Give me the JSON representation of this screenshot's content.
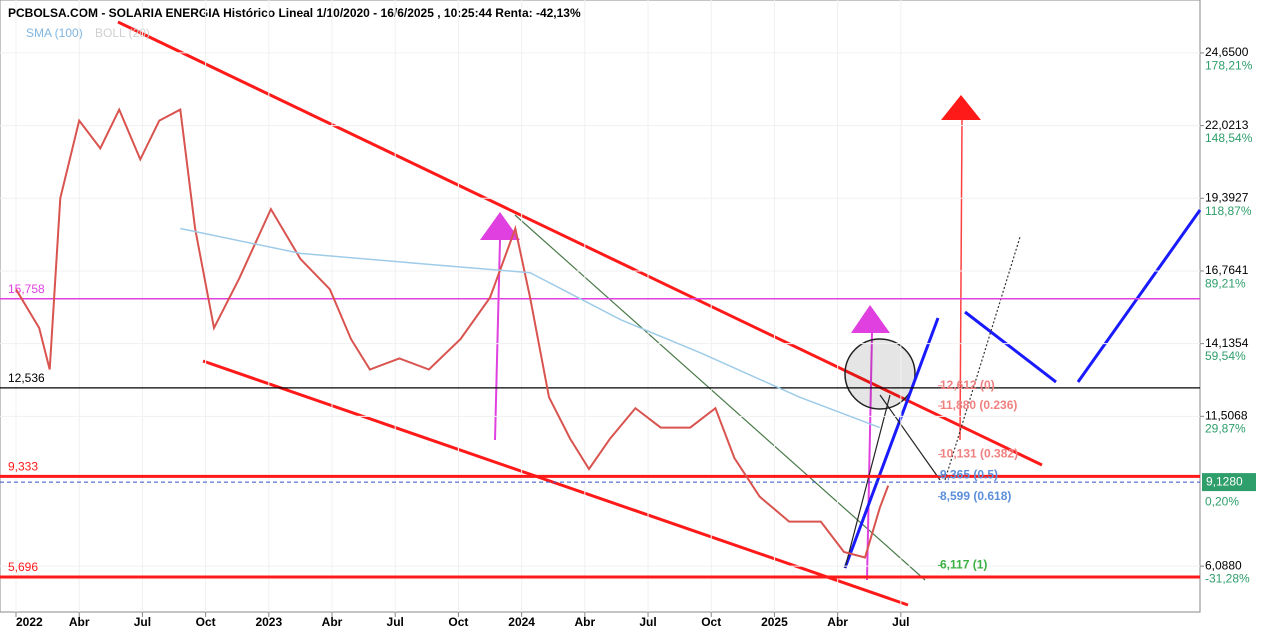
{
  "chart_data": {
    "type": "line",
    "title": "PCBOLSA.COM - SOLARIA ENERGIA Histórico Lineal 1/10/2020 - 16/6/2025 , 10:25:44 Renta: -42,13%",
    "legend": [
      "SMA (100)",
      "BOLL (20)"
    ],
    "xlim": [
      -0.76,
      56.2
    ],
    "xticks": [
      {
        "value": 0,
        "label": "2022"
      },
      {
        "value": 3,
        "label": "Abr"
      },
      {
        "value": 6,
        "label": "Jul"
      },
      {
        "value": 9,
        "label": "Oct"
      },
      {
        "value": 12,
        "label": "2023"
      },
      {
        "value": 15,
        "label": "Abr"
      },
      {
        "value": 18,
        "label": "Jul"
      },
      {
        "value": 21,
        "label": "Oct"
      },
      {
        "value": 24,
        "label": "2024"
      },
      {
        "value": 27,
        "label": "Abr"
      },
      {
        "value": 30,
        "label": "Jul"
      },
      {
        "value": 33,
        "label": "Oct"
      },
      {
        "value": 36,
        "label": "2025"
      },
      {
        "value": 39,
        "label": "Abr"
      },
      {
        "value": 42,
        "label": "Jul"
      }
    ],
    "ylim": [
      4.43,
      25.84
    ],
    "yticks": [
      {
        "value": 24.65,
        "label": "24,6500"
      },
      {
        "value": 22.0213,
        "label": "22,0213"
      },
      {
        "value": 19.3927,
        "label": "19,3927"
      },
      {
        "value": 16.7641,
        "label": "16,7641"
      },
      {
        "value": 14.1354,
        "label": "14,1354"
      },
      {
        "value": 11.5068,
        "label": "11,5068"
      },
      {
        "value": 6.088,
        "label": "6,0880"
      }
    ],
    "y2lim": [
      -49.97,
      191.85
    ],
    "y2ticks": [
      {
        "value": 178.21,
        "label": "178,21%"
      },
      {
        "value": 148.54,
        "label": "148,54%"
      },
      {
        "value": 118.87,
        "label": "118,87%"
      },
      {
        "value": 89.21,
        "label": "89,21%"
      },
      {
        "value": 59.54,
        "label": "59,54%"
      },
      {
        "value": 29.87,
        "label": "29,87%"
      },
      {
        "value": 0.2,
        "label": "0,20%"
      },
      {
        "value": -31.28,
        "label": "-31,28%"
      }
    ],
    "last_price": {
      "value": 9.128,
      "label": "9,1280"
    },
    "levels": [
      {
        "value": 15.758,
        "label": "15,758",
        "color": "#e040e0"
      },
      {
        "value": 12.536,
        "label": "12,536",
        "color": "#000000"
      },
      {
        "value": 9.333,
        "label": "9,333",
        "color": "#ff1a1a"
      },
      {
        "value": 5.696,
        "label": "5,696",
        "color": "#ff1a1a"
      }
    ],
    "fib_levels": [
      {
        "value": 12.612,
        "label": "12,612 (0)",
        "color": "#f08080"
      },
      {
        "value": 11.88,
        "label": "11,880 (0.236)",
        "color": "#f08080"
      },
      {
        "value": 10.131,
        "label": "10,131 (0.382)",
        "color": "#f08080"
      },
      {
        "value": 9.365,
        "label": "9,365 (0.5)",
        "color": "#5b8fd9"
      },
      {
        "value": 8.599,
        "label": "8,599 (0.618)",
        "color": "#5b8fd9"
      },
      {
        "value": 6.117,
        "label": "6,117 (1)",
        "color": "#3cb043"
      }
    ],
    "series": [
      {
        "name": "SOLARIA ENERGIA",
        "color": "#d9534f",
        "x": [
          0.0,
          1.1,
          1.6,
          2.1,
          3.0,
          4.0,
          4.9,
          5.9,
          6.8,
          7.8,
          8.5,
          9.4,
          10.6,
          12.1,
          13.5,
          14.9,
          15.9,
          16.8,
          18.2,
          19.6,
          21.1,
          22.5,
          23.7,
          24.4,
          25.3,
          26.3,
          27.2,
          28.2,
          29.4,
          30.6,
          32.0,
          33.2,
          34.1,
          35.3,
          36.7,
          38.2,
          39.3,
          40.3,
          41.0,
          41.4
        ],
        "values": [
          16.1,
          14.7,
          13.2,
          19.4,
          22.2,
          21.2,
          22.6,
          20.8,
          22.2,
          22.6,
          18.3,
          14.7,
          16.5,
          19.0,
          17.2,
          16.1,
          14.3,
          13.2,
          13.6,
          13.2,
          14.3,
          15.8,
          18.3,
          15.8,
          12.2,
          10.7,
          9.6,
          10.7,
          11.8,
          11.1,
          11.1,
          11.8,
          10.0,
          8.6,
          7.7,
          7.7,
          6.6,
          6.4,
          8.2,
          9.0
        ]
      },
      {
        "name": "SMA (100)",
        "color": "#9ecbe8",
        "x": [
          7.8,
          13.5,
          19.6,
          24.4,
          28.7,
          32.5,
          37.2,
          41.0
        ],
        "values": [
          18.3,
          17.4,
          17.0,
          16.7,
          15.0,
          13.8,
          12.2,
          11.1
        ]
      }
    ]
  }
}
